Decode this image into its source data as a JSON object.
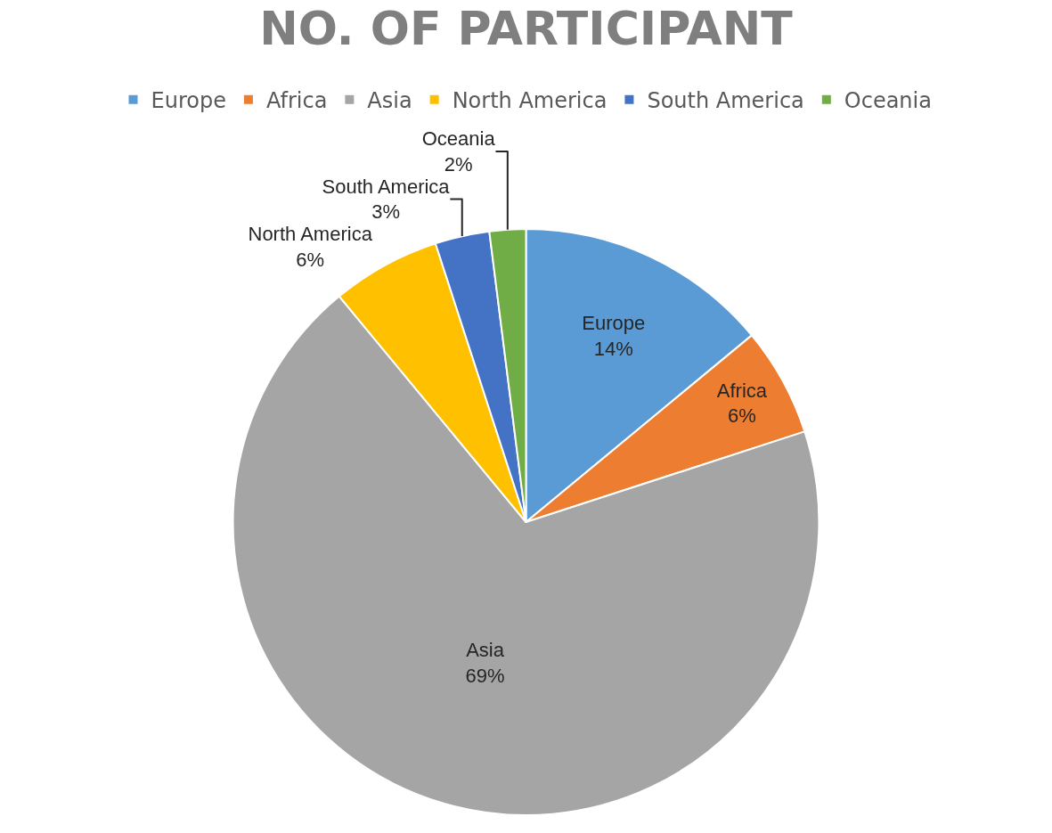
{
  "chart_data": {
    "type": "pie",
    "title": "NO. OF PARTICIPANT",
    "categories": [
      "Europe",
      "Africa",
      "Asia",
      "North America",
      "South America",
      "Oceania"
    ],
    "values": [
      14,
      6,
      69,
      6,
      3,
      2
    ],
    "value_labels": [
      "14%",
      "6%",
      "69%",
      "6%",
      "3%",
      "2%"
    ],
    "colors": [
      "#5b9bd5",
      "#ed7d31",
      "#a5a5a5",
      "#ffc000",
      "#4472c4",
      "#70ad47"
    ],
    "legend": "top"
  }
}
